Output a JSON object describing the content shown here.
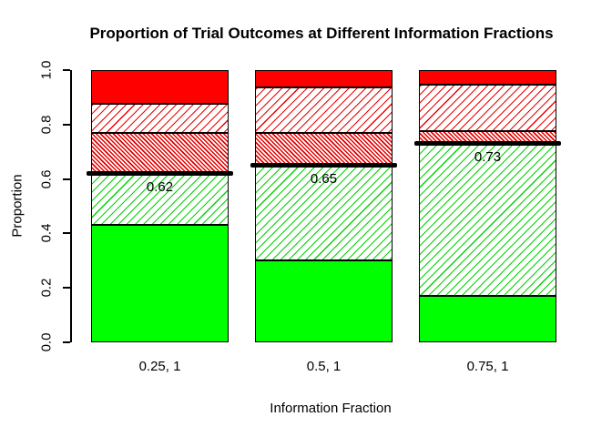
{
  "title": "Proportion of Trial Outcomes at Different Information Fractions",
  "axes": {
    "y_label": "Proportion",
    "x_label": "Information Fraction",
    "y_ticks": [
      "0.0",
      "0.2",
      "0.4",
      "0.6",
      "0.8",
      "1.0"
    ]
  },
  "chart_data": {
    "type": "bar",
    "stacked": true,
    "title": "Proportion of Trial Outcomes at Different Information Fractions",
    "xlabel": "Information Fraction",
    "ylabel": "Proportion",
    "ylim": [
      0,
      1
    ],
    "grid": false,
    "legend": "none",
    "categories": [
      "0.25, 1",
      "0.5, 1",
      "0.75, 1"
    ],
    "series": [
      {
        "name": "solid-green-bottom-segment",
        "style": "green-solid",
        "color": "#00ff00",
        "values": [
          0.43,
          0.3,
          0.17
        ]
      },
      {
        "name": "green-hatched-segment",
        "style": "green-hatch",
        "color": "#00ff00",
        "values": [
          0.19,
          0.35,
          0.56
        ]
      },
      {
        "name": "red-dense-hatched-segment",
        "style": "red-dense-hatch",
        "color": "#ff0000",
        "values": [
          0.15,
          0.12,
          0.045
        ]
      },
      {
        "name": "red-hatched-segment",
        "style": "red-hatch",
        "color": "#ff0000",
        "values": [
          0.105,
          0.165,
          0.17
        ]
      },
      {
        "name": "solid-red-top-segment",
        "style": "red-solid",
        "color": "#ff0000",
        "values": [
          0.125,
          0.065,
          0.055
        ]
      }
    ],
    "threshold_lines": {
      "color": "#000000",
      "values": [
        0.62,
        0.65,
        0.73
      ],
      "labels": [
        "0.62",
        "0.65",
        "0.73"
      ]
    },
    "colors": {
      "green": "#00ff00",
      "red": "#ff0000",
      "black": "#000000",
      "background": "#ffffff"
    }
  }
}
